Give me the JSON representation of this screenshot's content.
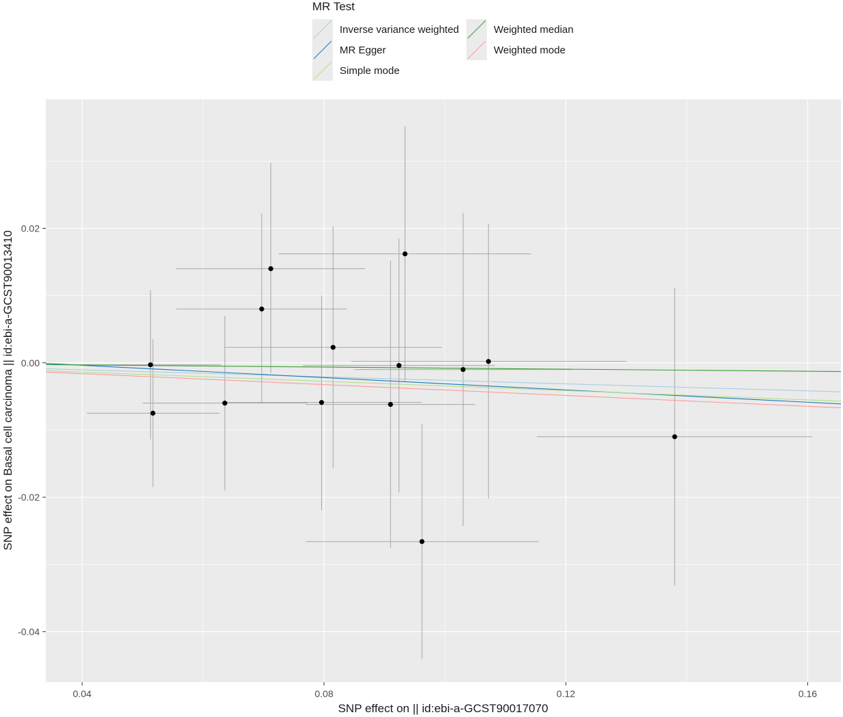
{
  "chart_data": {
    "type": "scatter",
    "title": "",
    "xlabel": "SNP effect on  || id:ebi-a-GCST90017070",
    "ylabel": "SNP effect on Basal cell carcinoma || id:ebi-a-GCST90013410",
    "xlim": [
      0.034,
      0.1655
    ],
    "ylim": [
      -0.0475,
      0.0392
    ],
    "x_ticks": [
      {
        "value": 0.04,
        "label": "0.04"
      },
      {
        "value": 0.08,
        "label": "0.08"
      },
      {
        "value": 0.12,
        "label": "0.12"
      },
      {
        "value": 0.16,
        "label": "0.16"
      }
    ],
    "y_ticks": [
      {
        "value": 0.02,
        "label": "0.02"
      },
      {
        "value": 0.0,
        "label": "0.00"
      },
      {
        "value": -0.02,
        "label": "-0.02"
      },
      {
        "value": -0.04,
        "label": "-0.04"
      }
    ],
    "grid": true,
    "legend": {
      "title": "MR Test",
      "position": "top",
      "items": [
        {
          "label": "Inverse variance weighted",
          "color": "#a6cee3"
        },
        {
          "label": "MR Egger",
          "color": "#1f78b4"
        },
        {
          "label": "Simple mode",
          "color": "#b2df8a"
        },
        {
          "label": "Weighted median",
          "color": "#33a02c"
        },
        {
          "label": "Weighted mode",
          "color": "#fb9a99"
        }
      ]
    },
    "points": [
      {
        "x": 0.0513,
        "y": -0.0003,
        "xlo": 0.04,
        "xhi": 0.063,
        "ylo": -0.0114,
        "yhi": 0.0108
      },
      {
        "x": 0.0517,
        "y": -0.0075,
        "xlo": 0.0408,
        "xhi": 0.0627,
        "ylo": -0.0185,
        "yhi": 0.0035
      },
      {
        "x": 0.0636,
        "y": -0.006,
        "xlo": 0.05,
        "xhi": 0.0772,
        "ylo": -0.019,
        "yhi": 0.007
      },
      {
        "x": 0.0697,
        "y": 0.008,
        "xlo": 0.0555,
        "xhi": 0.0838,
        "ylo": -0.006,
        "yhi": 0.0222
      },
      {
        "x": 0.0712,
        "y": 0.014,
        "xlo": 0.0555,
        "xhi": 0.0868,
        "ylo": -0.0015,
        "yhi": 0.0297
      },
      {
        "x": 0.0796,
        "y": -0.0059,
        "xlo": 0.063,
        "xhi": 0.0962,
        "ylo": -0.0219,
        "yhi": 0.01
      },
      {
        "x": 0.0815,
        "y": 0.0023,
        "xlo": 0.0635,
        "xhi": 0.0995,
        "ylo": -0.0157,
        "yhi": 0.0203
      },
      {
        "x": 0.091,
        "y": -0.0062,
        "xlo": 0.077,
        "xhi": 0.105,
        "ylo": -0.0275,
        "yhi": 0.0152
      },
      {
        "x": 0.0924,
        "y": -0.0004,
        "xlo": 0.0765,
        "xhi": 0.1083,
        "ylo": -0.0193,
        "yhi": 0.0185
      },
      {
        "x": 0.0934,
        "y": 0.0162,
        "xlo": 0.0725,
        "xhi": 0.1143,
        "ylo": -0.0028,
        "yhi": 0.0352
      },
      {
        "x": 0.0962,
        "y": -0.0266,
        "xlo": 0.077,
        "xhi": 0.1155,
        "ylo": -0.0441,
        "yhi": -0.0091
      },
      {
        "x": 0.103,
        "y": -0.001,
        "xlo": 0.085,
        "xhi": 0.121,
        "ylo": -0.0243,
        "yhi": 0.0223
      },
      {
        "x": 0.1072,
        "y": 0.0002,
        "xlo": 0.0845,
        "xhi": 0.13,
        "ylo": -0.0202,
        "yhi": 0.0207
      },
      {
        "x": 0.138,
        "y": -0.011,
        "xlo": 0.1152,
        "xhi": 0.1608,
        "ylo": -0.0332,
        "yhi": 0.0112
      }
    ],
    "lines": [
      {
        "method": "Inverse variance weighted",
        "color": "#a6cee3",
        "intercept": 0.0,
        "slope": -0.0261
      },
      {
        "method": "MR Egger",
        "color": "#1f78b4",
        "intercept": 0.00146,
        "slope": -0.0458
      },
      {
        "method": "Simple mode",
        "color": "#b2df8a",
        "intercept": 0.0,
        "slope": -0.0345
      },
      {
        "method": "Weighted median",
        "color": "#33a02c",
        "intercept": 0.0,
        "slope": -0.0079
      },
      {
        "method": "Weighted mode",
        "color": "#fb9a99",
        "intercept": 0.0,
        "slope": -0.0405
      }
    ]
  }
}
